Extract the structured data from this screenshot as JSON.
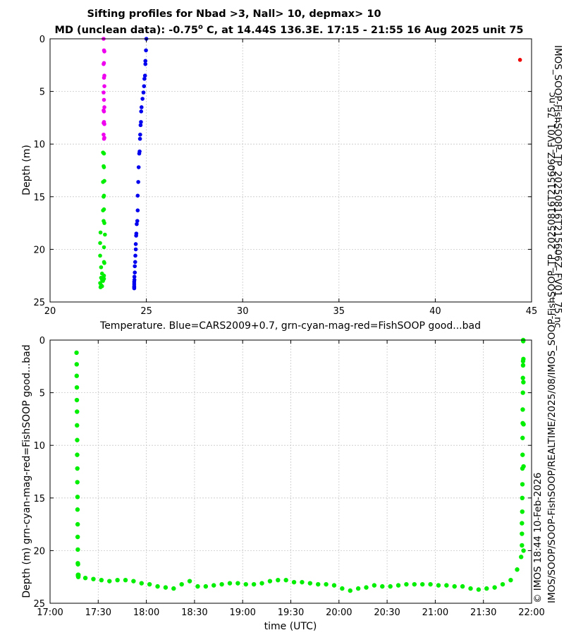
{
  "chart_data": [
    {
      "type": "scatter",
      "title_line1": "Sifting profiles for Nbad >3, Nall> 10, depmax> 10",
      "title_line2_prefix": "MD (unclean data): -0.75",
      "title_degree": "o",
      "title_line2_suffix": " C, at 14.44S 136.3E. 17:15 - 21:55 16 Aug 2025 unit 75",
      "xlabel": "Temperature. Blue=CARS2009+0.7, grn-cyan-mag-red=FishSOOP good...bad",
      "ylabel": "Depth (m)",
      "xlim": [
        20,
        45
      ],
      "ylim": [
        25,
        0
      ],
      "xticks": [
        "20",
        "25",
        "30",
        "35",
        "40",
        "45"
      ],
      "yticks": [
        "0",
        "5",
        "10",
        "15",
        "20",
        "25"
      ],
      "grid": true,
      "colors": {
        "blue": "#0000ee",
        "green": "#00ee00",
        "magenta": "#ee00ee",
        "red": "#ee0000"
      },
      "series": [
        {
          "name": "CARS2009+0.7",
          "color": "#0000ee",
          "x": [
            25.0,
            24.98,
            24.95,
            24.95,
            24.93,
            24.9,
            24.88,
            24.85,
            24.8,
            24.75,
            24.73,
            24.72,
            24.7,
            24.68,
            24.67,
            24.65,
            24.63,
            24.6,
            24.58,
            24.55,
            24.55,
            24.53,
            24.5,
            24.48,
            24.47,
            24.45,
            24.45,
            24.43,
            24.42,
            24.4,
            24.4,
            24.38,
            24.38,
            24.37,
            24.37,
            24.37,
            24.37,
            24.37
          ],
          "y": [
            0.0,
            1.1,
            2.1,
            2.4,
            3.5,
            3.8,
            4.5,
            5.1,
            5.7,
            6.5,
            6.9,
            7.9,
            8.2,
            9.1,
            9.5,
            10.7,
            10.9,
            12.2,
            13.6,
            14.9,
            16.3,
            17.3,
            17.6,
            18.5,
            18.7,
            19.5,
            20.0,
            20.6,
            21.2,
            21.6,
            22.2,
            22.6,
            22.9,
            23.1,
            23.3,
            23.5,
            23.6,
            23.7
          ]
        },
        {
          "name": "FishSOOP good",
          "color": "#00ee00",
          "x": [
            22.75,
            22.8,
            22.78,
            22.8,
            22.82,
            22.75,
            22.8,
            22.78,
            22.8,
            22.75,
            22.78,
            22.82,
            22.62,
            22.85,
            22.6,
            22.8,
            22.6,
            22.8,
            22.65,
            22.82,
            22.7,
            22.8,
            22.65,
            22.7,
            22.75,
            22.8,
            22.6,
            22.65,
            22.7,
            22.62
          ],
          "y": [
            10.8,
            10.9,
            12.1,
            12.2,
            13.5,
            13.6,
            14.9,
            15.0,
            16.2,
            16.3,
            17.3,
            17.5,
            18.4,
            18.6,
            19.4,
            19.8,
            20.6,
            21.2,
            21.7,
            21.3,
            22.3,
            22.5,
            22.7,
            22.9,
            23.0,
            22.8,
            23.2,
            23.4,
            23.5,
            23.6
          ]
        },
        {
          "name": "FishSOOP cyan",
          "color": "#00eeee",
          "x": [],
          "y": []
        },
        {
          "name": "FishSOOP mag",
          "color": "#ee00ee",
          "x": [
            22.78,
            22.8,
            22.82,
            22.8,
            22.78,
            22.82,
            22.8,
            22.82,
            22.78,
            22.8,
            22.82,
            22.78,
            22.8,
            22.82,
            22.78,
            22.82,
            22.8,
            22.78,
            22.8
          ],
          "y": [
            0.0,
            1.1,
            1.2,
            2.3,
            2.4,
            3.5,
            3.7,
            4.5,
            5.1,
            5.8,
            6.5,
            6.8,
            7.9,
            8.1,
            9.1,
            9.4,
            6.9,
            8.0,
            9.5
          ]
        },
        {
          "name": "FishSOOP bad",
          "color": "#ee0000",
          "x": [
            44.4
          ],
          "y": [
            2.0
          ]
        }
      ]
    },
    {
      "type": "scatter",
      "xlabel": "time (UTC)",
      "ylabel": "Depth (m) grn-cyan-mag-red=FishSOOP good...bad",
      "xlim_minutes": [
        1020,
        1320
      ],
      "ylim": [
        25,
        0
      ],
      "xticks": [
        "17:00",
        "17:30",
        "18:00",
        "18:30",
        "19:00",
        "19:30",
        "20:00",
        "20:30",
        "21:00",
        "21:30",
        "22:00"
      ],
      "yticks": [
        "0",
        "5",
        "10",
        "15",
        "20",
        "25"
      ],
      "grid": true,
      "series": [
        {
          "name": "FishSOOP good",
          "color": "#00ee00",
          "t": [
            1036.5,
            1036.6,
            1036.6,
            1036.7,
            1036.7,
            1036.8,
            1036.8,
            1036.9,
            1036.9,
            1037.0,
            1037.0,
            1037.1,
            1037.1,
            1037.2,
            1037.2,
            1037.3,
            1037.3,
            1037.4,
            1037.4,
            1037.5,
            1037.5,
            1037.6,
            1037.6,
            1037.7,
            1042,
            1047,
            1052,
            1057,
            1062,
            1067,
            1072,
            1077,
            1082,
            1087,
            1092,
            1097,
            1102,
            1107,
            1112,
            1117,
            1122,
            1127,
            1132,
            1137,
            1142,
            1147,
            1152,
            1157,
            1162,
            1167,
            1172,
            1177,
            1182,
            1187,
            1192,
            1197,
            1202,
            1207,
            1212,
            1217,
            1222,
            1227,
            1232,
            1237,
            1242,
            1247,
            1252,
            1257,
            1262,
            1267,
            1272,
            1277,
            1282,
            1287,
            1292,
            1297,
            1302,
            1307,
            1311,
            1313.5,
            1314,
            1314,
            1314,
            1314.2,
            1314.2,
            1314.3,
            1314.3,
            1314.4,
            1314.4,
            1314.5,
            1314.5,
            1314.6,
            1314.6,
            1314.7,
            1314.7,
            1314.8,
            1314.8,
            1314.9,
            1314.9,
            1315.0,
            1315.0,
            1315.0
          ],
          "y": [
            1.2,
            2.3,
            3.4,
            4.5,
            5.7,
            6.8,
            8.1,
            9.5,
            10.9,
            12.2,
            13.5,
            14.9,
            16.1,
            17.5,
            18.7,
            19.9,
            21.2,
            21.3,
            22.3,
            22.4,
            22.4,
            22.5,
            22.4,
            22.3,
            22.6,
            22.7,
            22.8,
            22.9,
            22.8,
            22.8,
            22.9,
            23.1,
            23.2,
            23.4,
            23.5,
            23.6,
            23.2,
            22.9,
            23.4,
            23.4,
            23.3,
            23.2,
            23.1,
            23.1,
            23.2,
            23.2,
            23.1,
            22.9,
            22.8,
            22.8,
            23.0,
            23.0,
            23.1,
            23.2,
            23.2,
            23.3,
            23.6,
            23.8,
            23.6,
            23.5,
            23.3,
            23.4,
            23.4,
            23.3,
            23.2,
            23.2,
            23.2,
            23.2,
            23.3,
            23.3,
            23.4,
            23.4,
            23.6,
            23.7,
            23.6,
            23.5,
            23.2,
            22.8,
            21.8,
            20.6,
            19.5,
            18.4,
            17.4,
            16.3,
            15.0,
            13.7,
            12.2,
            10.9,
            9.3,
            7.9,
            6.6,
            5.0,
            3.6,
            2.4,
            2.0,
            0.0,
            0.1,
            1.8,
            4.0,
            8.0,
            12.0,
            20.0
          ]
        }
      ]
    }
  ],
  "side_text": {
    "line1": "IMOS_SOOP-FishSOOP_TP_20250816T215606Z_FV01_75.nc",
    "line2": "© IMOS 18:44 10-Feb-2026",
    "line3": "IMOS/SOOP/SOOP-FishSOOP/REALTIME/2025/08/IMOS_SOOP-FishSOOP_TP_20250816T215606Z_FV01_75.nc"
  }
}
